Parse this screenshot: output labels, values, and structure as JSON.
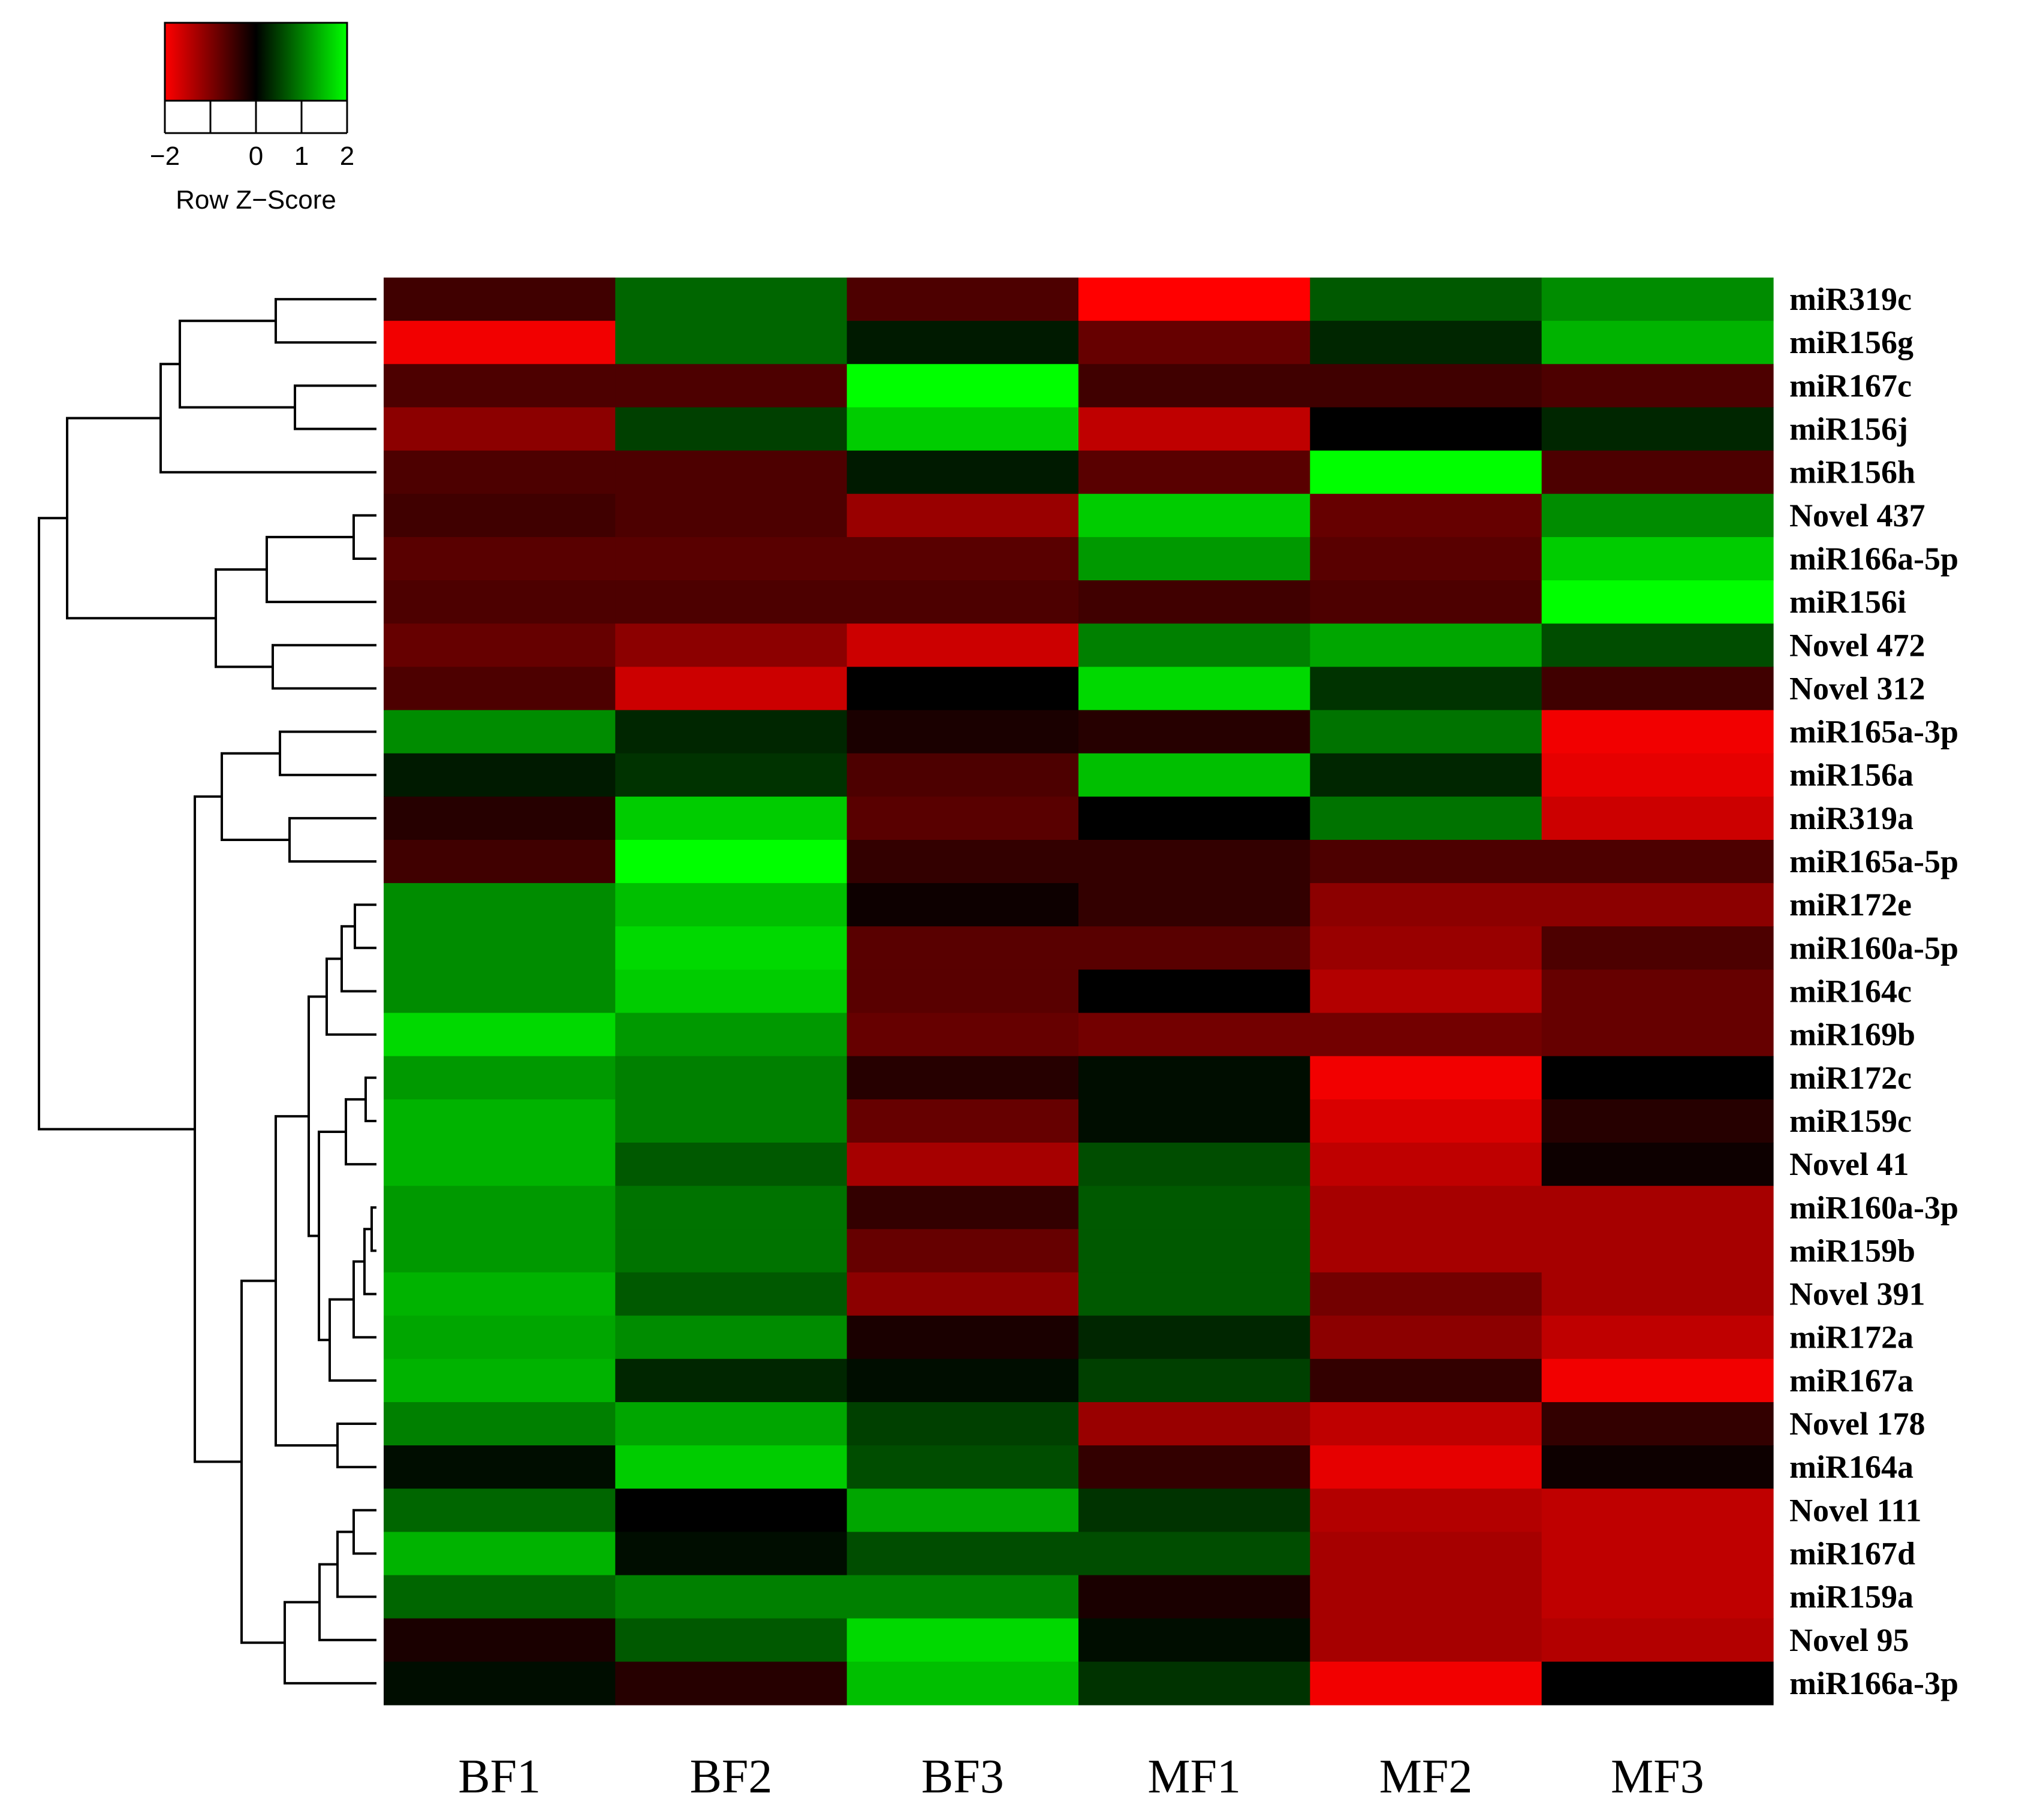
{
  "chart_data": {
    "type": "heatmap",
    "columns": [
      "BF1",
      "BF2",
      "BF3",
      "MF1",
      "MF2",
      "MF3"
    ],
    "rows": [
      "miR319c",
      "miR156g",
      "miR167c",
      "miR156j",
      "miR156h",
      "Novel 437",
      "miR166a-5p",
      "miR156i",
      "Novel 472",
      "Novel 312",
      "miR165a-3p",
      "miR156a",
      "miR319a",
      "miR165a-5p",
      "miR172e",
      "miR160a-5p",
      "miR164c",
      "miR169b",
      "miR172c",
      "miR159c",
      "Novel 41",
      "miR160a-3p",
      "miR159b",
      "Novel 391",
      "miR172a",
      "miR167a",
      "Novel 178",
      "miR164a",
      "Novel 111",
      "miR167d",
      "miR159a",
      "Novel 95",
      "miR166a-3p"
    ],
    "values": [
      [
        -0.5,
        0.8,
        -0.6,
        -2.0,
        0.7,
        1.1
      ],
      [
        -1.9,
        0.8,
        0.2,
        -0.8,
        0.3,
        1.4
      ],
      [
        -0.6,
        -0.6,
        2.0,
        -0.5,
        -0.5,
        -0.6
      ],
      [
        -1.1,
        0.5,
        1.6,
        -1.5,
        0.0,
        0.3
      ],
      [
        -0.6,
        -0.6,
        0.2,
        -0.7,
        2.0,
        -0.6
      ],
      [
        -0.5,
        -0.6,
        -1.2,
        1.6,
        -0.8,
        1.1
      ],
      [
        -0.7,
        -0.7,
        -0.7,
        1.2,
        -0.7,
        1.6
      ],
      [
        -0.6,
        -0.6,
        -0.6,
        -0.5,
        -0.6,
        2.0
      ],
      [
        -0.8,
        -1.1,
        -1.6,
        1.0,
        1.3,
        0.6
      ],
      [
        -0.6,
        -1.6,
        0.0,
        1.7,
        0.4,
        -0.5
      ],
      [
        1.1,
        0.3,
        -0.2,
        -0.3,
        0.9,
        -1.9
      ],
      [
        0.2,
        0.4,
        -0.6,
        1.5,
        0.3,
        -1.8
      ],
      [
        -0.3,
        1.6,
        -0.7,
        0.0,
        0.9,
        -1.6
      ],
      [
        -0.5,
        2.0,
        -0.4,
        -0.4,
        -0.6,
        -0.6
      ],
      [
        1.1,
        1.5,
        -0.1,
        -0.4,
        -1.1,
        -1.1
      ],
      [
        1.1,
        1.7,
        -0.7,
        -0.7,
        -1.2,
        -0.6
      ],
      [
        1.1,
        1.6,
        -0.7,
        0.0,
        -1.4,
        -0.8
      ],
      [
        1.7,
        1.2,
        -0.8,
        -0.9,
        -0.9,
        -0.8
      ],
      [
        1.2,
        1.0,
        -0.3,
        0.1,
        -1.9,
        0.0
      ],
      [
        1.4,
        1.0,
        -0.8,
        0.1,
        -1.7,
        -0.3
      ],
      [
        1.4,
        0.7,
        -1.3,
        0.6,
        -1.5,
        -0.1
      ],
      [
        1.2,
        0.9,
        -0.4,
        0.7,
        -1.3,
        -1.3
      ],
      [
        1.2,
        0.9,
        -0.8,
        0.7,
        -1.3,
        -1.3
      ],
      [
        1.4,
        0.7,
        -1.1,
        0.7,
        -0.9,
        -1.3
      ],
      [
        1.3,
        1.1,
        -0.2,
        0.3,
        -1.1,
        -1.5
      ],
      [
        1.4,
        0.3,
        0.1,
        0.5,
        -0.4,
        -1.9
      ],
      [
        1.0,
        1.3,
        0.5,
        -1.2,
        -1.5,
        -0.4
      ],
      [
        0.1,
        1.6,
        0.6,
        -0.4,
        -1.8,
        -0.1
      ],
      [
        0.8,
        0.0,
        1.3,
        0.4,
        -1.4,
        -1.5
      ],
      [
        1.4,
        0.1,
        0.6,
        0.6,
        -1.3,
        -1.5
      ],
      [
        0.8,
        1.0,
        1.0,
        -0.2,
        -1.3,
        -1.5
      ],
      [
        -0.2,
        0.7,
        1.7,
        0.1,
        -1.3,
        -1.4
      ],
      [
        0.1,
        -0.3,
        1.5,
        0.4,
        -1.9,
        0.0
      ]
    ],
    "color_scale": {
      "min": -2,
      "mid": 0,
      "max": 2,
      "low": "#ff0000",
      "mid_color": "#000000",
      "high": "#00ff00"
    },
    "color_key": {
      "ticks": [
        "−2",
        "0",
        "1",
        "2"
      ],
      "title": "Row Z−Score"
    },
    "row_dendrogram": true
  }
}
